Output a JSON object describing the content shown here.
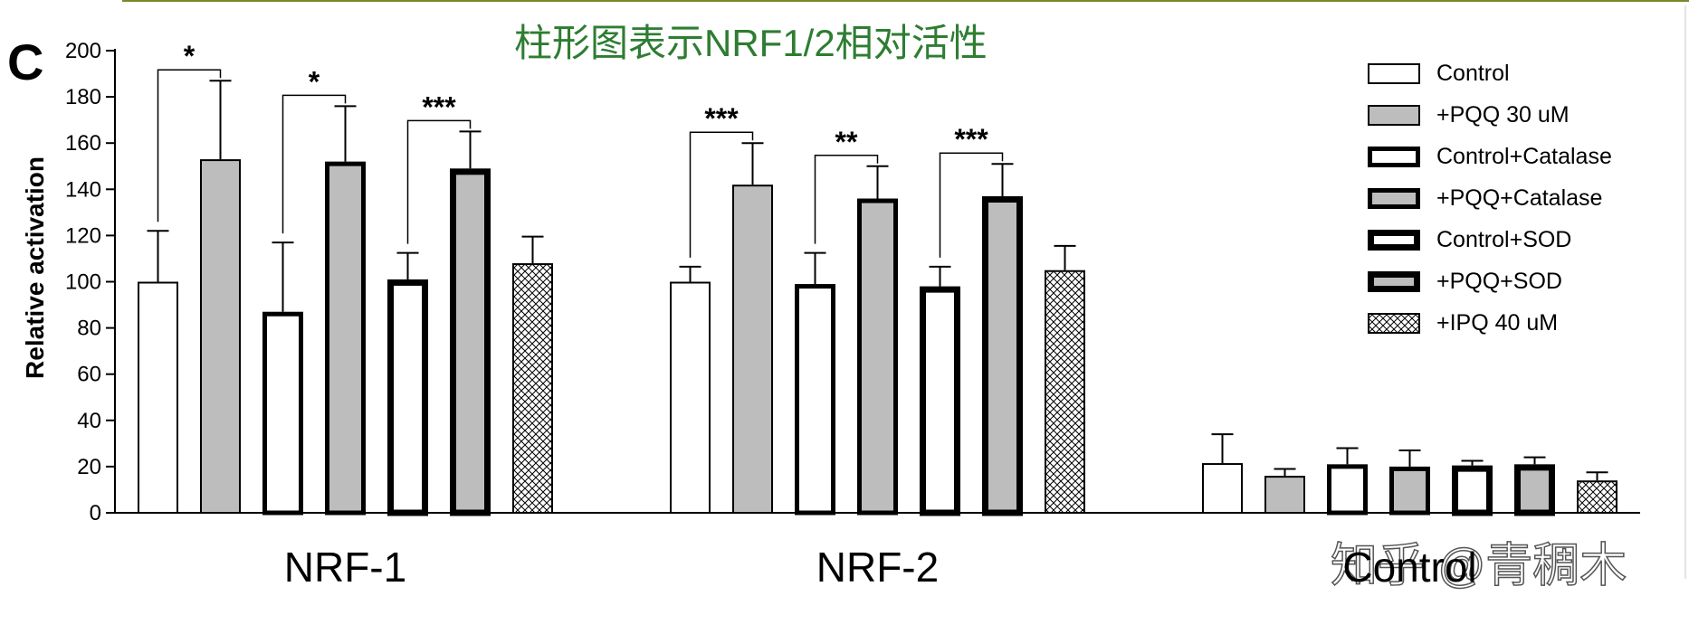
{
  "panel_letter": "C",
  "overlay_title": "柱形图表示NRF1/2相对活性",
  "watermark": "知乎 @青稠木",
  "colors": {
    "title_green": "#2e7d32",
    "white_fill": "#ffffff",
    "gray_fill": "#bdbdbd",
    "black": "#000000",
    "top_rule": "#7a8a2a"
  },
  "chart_data": {
    "type": "bar",
    "title": "",
    "xlabel": "",
    "ylabel": "Relative activation",
    "ylim": [
      0,
      200
    ],
    "yticks": [
      0,
      20,
      40,
      60,
      80,
      100,
      120,
      140,
      160,
      180,
      200
    ],
    "categories": [
      "NRF-1",
      "NRF-2",
      "Control"
    ],
    "legend_position": "top-right",
    "series": [
      {
        "name": "Control",
        "style": "white-thin",
        "values": [
          100,
          100,
          21.5
        ],
        "errors": [
          22,
          6.5,
          12.5
        ]
      },
      {
        "name": "+PQQ 30 uM",
        "style": "gray-thin",
        "values": [
          153,
          142,
          16
        ],
        "errors": [
          34,
          18,
          3
        ]
      },
      {
        "name": "Control+Catalase",
        "style": "white-medium",
        "values": [
          87,
          99,
          21
        ],
        "errors": [
          30,
          13.5,
          7
        ]
      },
      {
        "name": "+PQQ+Catalase",
        "style": "gray-medium",
        "values": [
          152,
          136,
          20
        ],
        "errors": [
          24,
          14,
          7
        ]
      },
      {
        "name": "Control+SOD",
        "style": "white-thick",
        "values": [
          101,
          98,
          20.5
        ],
        "errors": [
          11.5,
          8.5,
          2
        ]
      },
      {
        "name": "+PQQ+SOD",
        "style": "gray-thick",
        "values": [
          149,
          137,
          21
        ],
        "errors": [
          16,
          14,
          3
        ]
      },
      {
        "name": "+IPQ 40 uM",
        "style": "hatched",
        "values": [
          108,
          105,
          14
        ],
        "errors": [
          11.5,
          10.5,
          3.5
        ]
      }
    ],
    "significance": [
      {
        "group": "NRF-1",
        "from": "Control",
        "to": "+PQQ 30 uM",
        "label": "*"
      },
      {
        "group": "NRF-1",
        "from": "Control+Catalase",
        "to": "+PQQ+Catalase",
        "label": "*"
      },
      {
        "group": "NRF-1",
        "from": "Control+SOD",
        "to": "+PQQ+SOD",
        "label": "***"
      },
      {
        "group": "NRF-2",
        "from": "Control",
        "to": "+PQQ 30 uM",
        "label": "***"
      },
      {
        "group": "NRF-2",
        "from": "Control+Catalase",
        "to": "+PQQ+Catalase",
        "label": "**"
      },
      {
        "group": "NRF-2",
        "from": "Control+SOD",
        "to": "+PQQ+SOD",
        "label": "***"
      }
    ]
  }
}
